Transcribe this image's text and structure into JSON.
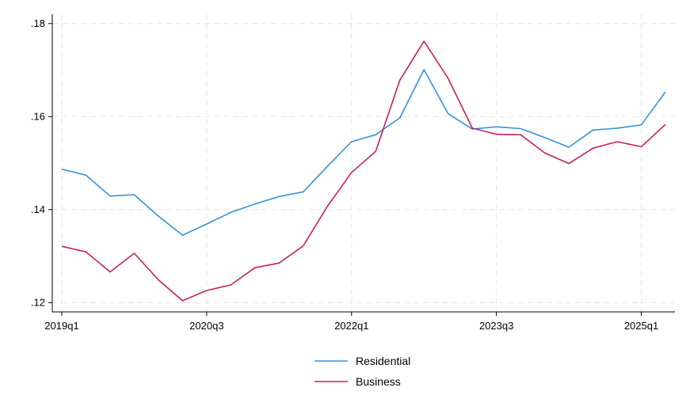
{
  "chart_data": {
    "type": "line",
    "title": "",
    "xlabel": "",
    "ylabel": "",
    "categories": [
      "2019q1",
      "2019q2",
      "2019q3",
      "2019q4",
      "2020q1",
      "2020q2",
      "2020q3",
      "2020q4",
      "2021q1",
      "2021q2",
      "2021q3",
      "2021q4",
      "2022q1",
      "2022q2",
      "2022q3",
      "2022q4",
      "2023q1",
      "2023q2",
      "2023q3",
      "2023q4",
      "2024q1",
      "2024q2",
      "2024q3",
      "2024q4",
      "2025q1",
      "2025q2"
    ],
    "x_tick_labels": [
      "2019q1",
      "2020q3",
      "2022q1",
      "2023q3",
      "2025q1"
    ],
    "x_tick_index": [
      0,
      6,
      12,
      18,
      24
    ],
    "ylim": [
      0.118,
      0.182
    ],
    "y_ticks": [
      0.12,
      0.14,
      0.16,
      0.18
    ],
    "y_tick_labels": [
      ".12",
      ".14",
      ".16",
      ".18"
    ],
    "grid": true,
    "legend_position": "bottom",
    "series": [
      {
        "name": "Residential",
        "color": "#3592e0",
        "values": [
          0.1487,
          0.1474,
          0.1429,
          0.1432,
          0.1386,
          0.1345,
          0.1369,
          0.1394,
          0.1412,
          0.1428,
          0.1438,
          0.1493,
          0.1546,
          0.1561,
          0.1597,
          0.1701,
          0.1606,
          0.1573,
          0.1578,
          0.1574,
          0.1555,
          0.1534,
          0.1571,
          0.1575,
          0.1582,
          0.1653
        ]
      },
      {
        "name": "Business",
        "color": "#c6205f",
        "values": [
          0.1321,
          0.1309,
          0.1266,
          0.1306,
          0.1249,
          0.1204,
          0.1226,
          0.1238,
          0.1275,
          0.1285,
          0.1322,
          0.1407,
          0.148,
          0.1525,
          0.1678,
          0.1762,
          0.1682,
          0.1575,
          0.1562,
          0.1561,
          0.1522,
          0.1499,
          0.1532,
          0.1546,
          0.1535,
          0.1583
        ]
      }
    ]
  }
}
